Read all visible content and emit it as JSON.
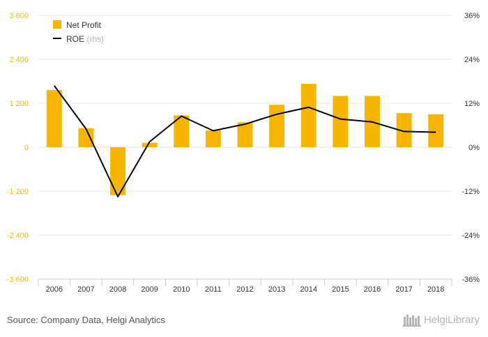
{
  "chart_data": {
    "type": "bar+line",
    "categories": [
      "2006",
      "2007",
      "2008",
      "2009",
      "2010",
      "2011",
      "2012",
      "2013",
      "2014",
      "2015",
      "2016",
      "2017",
      "2018"
    ],
    "series": [
      {
        "name": "Net Profit",
        "type": "bar",
        "axis": "left",
        "color": "#f7b500",
        "values": [
          1560,
          520,
          -1310,
          120,
          870,
          460,
          680,
          1160,
          1730,
          1400,
          1400,
          930,
          900
        ]
      },
      {
        "name": "ROE",
        "type": "line",
        "axis": "right",
        "color": "#000000",
        "values": [
          16.8,
          5.0,
          -13.5,
          1.5,
          8.5,
          4.5,
          6.3,
          9.0,
          10.9,
          7.7,
          6.9,
          4.3,
          4.1
        ]
      }
    ],
    "y_left": {
      "ticks": [
        "3 600",
        "2 400",
        "1 200",
        "0",
        "-1 200",
        "-2 400",
        "-3 600"
      ],
      "ylim": [
        -3600,
        3600
      ]
    },
    "y_right": {
      "ticks": [
        "36%",
        "24%",
        "12%",
        "0%",
        "-12%",
        "-24%",
        "-36%"
      ],
      "ylim": [
        -36,
        36
      ]
    },
    "legend": {
      "placement": "top-left",
      "items": [
        {
          "label": "Net Profit",
          "suffix": ""
        },
        {
          "label": "ROE",
          "suffix": "(rhs)"
        }
      ]
    },
    "grid": true,
    "bar_color": "#f7b500",
    "line_color": "#000000",
    "tick_color_left": "#f7b500"
  },
  "footer": {
    "source": "Source: Company Data, Helgi Analytics",
    "brand": "HelgiLibrary"
  }
}
